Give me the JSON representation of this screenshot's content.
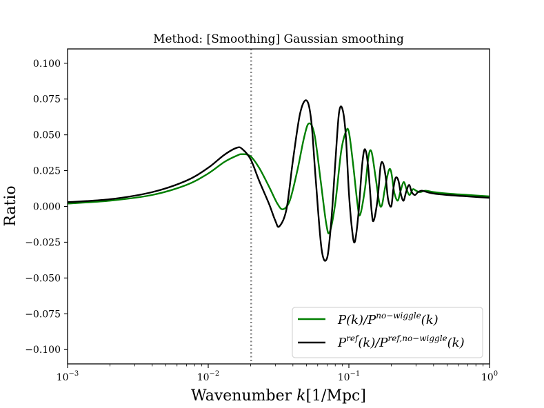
{
  "chart_data": {
    "type": "line",
    "title": "Method: [Smoothing] Gaussian smoothing",
    "xlabel": "Wavenumber k[1/Mpc]",
    "xlabel_parts": {
      "prefix": "Wavenumber ",
      "var": "k",
      "unit": "[1/Mpc]"
    },
    "ylabel": "Ratio",
    "xscale": "log",
    "xlim": [
      0.001,
      1.0
    ],
    "ylim": [
      -0.11,
      0.11
    ],
    "x_ticks": [
      {
        "value": 0.001,
        "base": "10",
        "exp": "−3"
      },
      {
        "value": 0.01,
        "base": "10",
        "exp": "−2"
      },
      {
        "value": 0.1,
        "base": "10",
        "exp": "−1"
      },
      {
        "value": 1.0,
        "base": "10",
        "exp": "0"
      }
    ],
    "y_ticks": [
      {
        "value": 0.1,
        "label": "0.100"
      },
      {
        "value": 0.075,
        "label": "0.075"
      },
      {
        "value": 0.05,
        "label": "0.050"
      },
      {
        "value": 0.025,
        "label": "0.025"
      },
      {
        "value": 0.0,
        "label": "0.000"
      },
      {
        "value": -0.025,
        "label": "−0.025"
      },
      {
        "value": -0.05,
        "label": "−0.050"
      },
      {
        "value": -0.075,
        "label": "−0.075"
      },
      {
        "value": -0.1,
        "label": "−0.100"
      }
    ],
    "vline": {
      "x": 0.0202,
      "style": "dotted",
      "color": "#808080"
    },
    "legend_position": "lower-right",
    "series": [
      {
        "name": "P(k)/P^{no-wiggle}(k)",
        "legend": {
          "a": "P(k)/P",
          "sup": "no−wiggle",
          "b": "(k)"
        },
        "color": "#007f00",
        "x": [
          0.001,
          0.002,
          0.004,
          0.007,
          0.01,
          0.013,
          0.016,
          0.0175,
          0.02,
          0.023,
          0.027,
          0.031,
          0.034,
          0.038,
          0.043,
          0.048,
          0.052,
          0.057,
          0.063,
          0.069,
          0.073,
          0.08,
          0.088,
          0.095,
          0.1,
          0.107,
          0.115,
          0.12,
          0.13,
          0.138,
          0.145,
          0.155,
          0.165,
          0.172,
          0.18,
          0.192,
          0.2,
          0.21,
          0.222,
          0.232,
          0.245,
          0.257,
          0.27,
          0.285,
          0.3,
          0.32,
          0.35,
          0.4,
          0.5,
          0.7,
          1.0
        ],
        "y": [
          0.002,
          0.004,
          0.008,
          0.015,
          0.023,
          0.031,
          0.0355,
          0.0365,
          0.035,
          0.027,
          0.014,
          0.002,
          -0.002,
          0.004,
          0.025,
          0.048,
          0.058,
          0.05,
          0.018,
          -0.012,
          -0.018,
          0.002,
          0.038,
          0.052,
          0.052,
          0.03,
          0.002,
          -0.006,
          0.012,
          0.035,
          0.038,
          0.02,
          0.002,
          0.001,
          0.012,
          0.025,
          0.024,
          0.01,
          0.004,
          0.01,
          0.017,
          0.012,
          0.008,
          0.012,
          0.011,
          0.01,
          0.011,
          0.01,
          0.009,
          0.008,
          0.007
        ]
      },
      {
        "name": "P^{ref}(k)/P^{ref,no-wiggle}(k)",
        "legend": {
          "a": "P",
          "sup1": "ref",
          "b": "(k)/P",
          "sup2": "ref,no−wiggle",
          "c": "(k)"
        },
        "color": "#000000",
        "x": [
          0.001,
          0.002,
          0.004,
          0.007,
          0.01,
          0.013,
          0.016,
          0.0175,
          0.02,
          0.023,
          0.027,
          0.03,
          0.032,
          0.036,
          0.04,
          0.045,
          0.05,
          0.054,
          0.058,
          0.064,
          0.07,
          0.075,
          0.08,
          0.085,
          0.09,
          0.095,
          0.1,
          0.105,
          0.11,
          0.117,
          0.124,
          0.13,
          0.137,
          0.145,
          0.15,
          0.16,
          0.168,
          0.175,
          0.183,
          0.19,
          0.2,
          0.207,
          0.215,
          0.225,
          0.235,
          0.245,
          0.255,
          0.268,
          0.28,
          0.295,
          0.31,
          0.33,
          0.36,
          0.4,
          0.5,
          0.7,
          1.0
        ],
        "y": [
          0.003,
          0.005,
          0.01,
          0.018,
          0.027,
          0.036,
          0.041,
          0.04,
          0.033,
          0.018,
          0.002,
          -0.01,
          -0.014,
          -0.002,
          0.032,
          0.065,
          0.074,
          0.06,
          0.02,
          -0.03,
          -0.036,
          -0.01,
          0.03,
          0.065,
          0.068,
          0.05,
          0.01,
          -0.015,
          -0.025,
          -0.005,
          0.028,
          0.04,
          0.028,
          -0.003,
          -0.01,
          0.005,
          0.028,
          0.03,
          0.02,
          0.005,
          0.0,
          0.012,
          0.02,
          0.018,
          0.008,
          0.004,
          0.01,
          0.015,
          0.01,
          0.008,
          0.01,
          0.011,
          0.01,
          0.009,
          0.008,
          0.007,
          0.006
        ]
      }
    ]
  }
}
